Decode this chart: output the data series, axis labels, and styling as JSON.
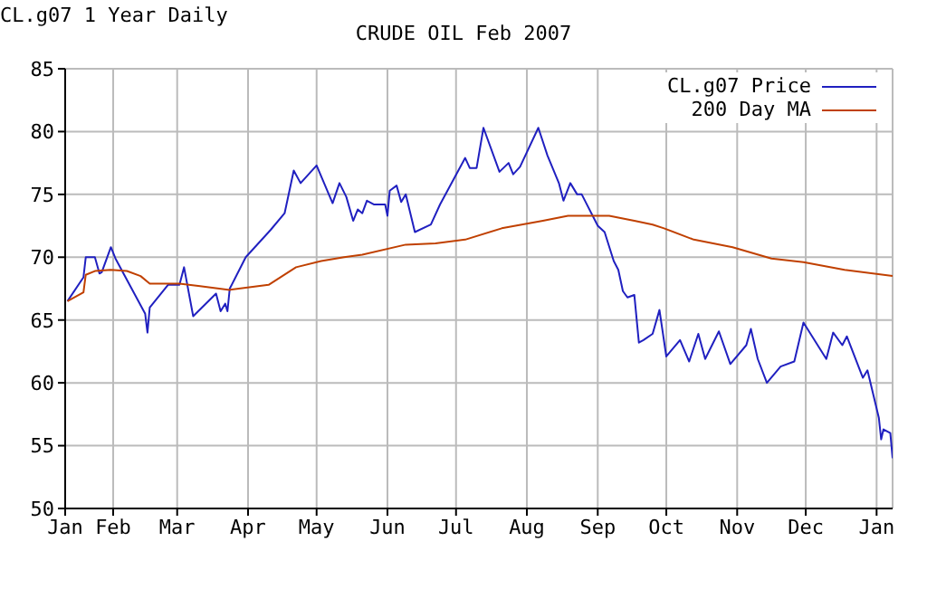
{
  "chart_data": {
    "type": "line",
    "title": "CRUDE OIL Feb 2007",
    "subtitle": "CL.g07 1 Year Daily",
    "xlim": [
      "2006-01-11",
      "2007-01-08"
    ],
    "xticks": [
      {
        "value": "2006-01-11",
        "label": "Jan"
      },
      {
        "value": "2006-02-01",
        "label": "Feb"
      },
      {
        "value": "2006-03-01",
        "label": "Mar"
      },
      {
        "value": "2006-04-01",
        "label": "Apr"
      },
      {
        "value": "2006-05-01",
        "label": "May"
      },
      {
        "value": "2006-06-01",
        "label": "Jun"
      },
      {
        "value": "2006-07-01",
        "label": "Jul"
      },
      {
        "value": "2006-08-01",
        "label": "Aug"
      },
      {
        "value": "2006-09-01",
        "label": "Sep"
      },
      {
        "value": "2006-10-01",
        "label": "Oct"
      },
      {
        "value": "2006-11-01",
        "label": "Nov"
      },
      {
        "value": "2006-12-01",
        "label": "Dec"
      },
      {
        "value": "2007-01-01",
        "label": "Jan"
      }
    ],
    "ylim": [
      50,
      85
    ],
    "yticks": [
      50,
      55,
      60,
      65,
      70,
      75,
      80,
      85
    ],
    "grid": true,
    "legend": "top right",
    "series": [
      {
        "name": "CL.g07 Price",
        "color": "#2020c0",
        "x": [
          "2006-01-12",
          "2006-01-19",
          "2006-01-20",
          "2006-01-24",
          "2006-01-26",
          "2006-01-27",
          "2006-01-31",
          "2006-02-02",
          "2006-02-07",
          "2006-02-15",
          "2006-02-16",
          "2006-02-17",
          "2006-02-25",
          "2006-03-02",
          "2006-03-04",
          "2006-03-08",
          "2006-03-18",
          "2006-03-20",
          "2006-03-22",
          "2006-03-23",
          "2006-03-24",
          "2006-03-31",
          "2006-04-11",
          "2006-04-17",
          "2006-04-21",
          "2006-04-24",
          "2006-05-01",
          "2006-05-08",
          "2006-05-11",
          "2006-05-14",
          "2006-05-17",
          "2006-05-19",
          "2006-05-21",
          "2006-05-23",
          "2006-05-26",
          "2006-05-31",
          "2006-06-01",
          "2006-06-02",
          "2006-06-05",
          "2006-06-07",
          "2006-06-09",
          "2006-06-13",
          "2006-06-20",
          "2006-06-24",
          "2006-07-05",
          "2006-07-07",
          "2006-07-10",
          "2006-07-13",
          "2006-07-20",
          "2006-07-24",
          "2006-07-26",
          "2006-07-29",
          "2006-08-06",
          "2006-08-10",
          "2006-08-15",
          "2006-08-17",
          "2006-08-20",
          "2006-08-23",
          "2006-08-25",
          "2006-09-01",
          "2006-09-04",
          "2006-09-08",
          "2006-09-10",
          "2006-09-12",
          "2006-09-14",
          "2006-09-17",
          "2006-09-19",
          "2006-09-21",
          "2006-09-25",
          "2006-09-28",
          "2006-10-01",
          "2006-10-07",
          "2006-10-11",
          "2006-10-15",
          "2006-10-18",
          "2006-10-24",
          "2006-10-29",
          "2006-11-05",
          "2006-11-07",
          "2006-11-10",
          "2006-11-14",
          "2006-11-20",
          "2006-11-26",
          "2006-11-30",
          "2006-12-10",
          "2006-12-13",
          "2006-12-17",
          "2006-12-19",
          "2006-12-26",
          "2006-12-28",
          "2007-01-02",
          "2007-01-03",
          "2007-01-04",
          "2007-01-07",
          "2007-01-08"
        ],
        "values": [
          66.5,
          68.4,
          70.0,
          70.0,
          68.7,
          68.8,
          70.8,
          69.9,
          68.2,
          65.5,
          64.0,
          66.0,
          67.8,
          67.8,
          69.2,
          65.3,
          67.1,
          65.7,
          66.3,
          65.7,
          67.5,
          70.0,
          72.2,
          73.5,
          76.9,
          75.9,
          77.3,
          74.3,
          75.9,
          74.8,
          72.9,
          73.8,
          73.5,
          74.5,
          74.2,
          74.2,
          73.3,
          75.3,
          75.7,
          74.4,
          75.0,
          72.0,
          72.6,
          74.2,
          77.9,
          77.1,
          77.1,
          80.3,
          76.8,
          77.5,
          76.6,
          77.2,
          80.3,
          78.1,
          75.9,
          74.5,
          75.9,
          75.0,
          75.0,
          72.5,
          72.0,
          69.7,
          69.0,
          67.3,
          66.8,
          67.0,
          63.2,
          63.4,
          63.9,
          65.8,
          62.1,
          63.4,
          61.7,
          63.9,
          61.9,
          64.1,
          61.5,
          63.0,
          64.3,
          61.9,
          60.0,
          61.3,
          61.7,
          64.8,
          61.9,
          64.0,
          63.0,
          63.7,
          60.4,
          61.0,
          57.2,
          55.5,
          56.3,
          56.0,
          54.0
        ]
      },
      {
        "name": "200 Day MA",
        "color": "#c04000",
        "x": [
          "2006-01-12",
          "2006-01-19",
          "2006-01-20",
          "2006-01-24",
          "2006-01-31",
          "2006-02-07",
          "2006-02-13",
          "2006-02-17",
          "2006-03-02",
          "2006-03-11",
          "2006-03-24",
          "2006-04-10",
          "2006-04-22",
          "2006-05-03",
          "2006-05-13",
          "2006-05-21",
          "2006-06-09",
          "2006-06-22",
          "2006-07-05",
          "2006-07-21",
          "2006-08-08",
          "2006-08-19",
          "2006-09-06",
          "2006-09-17",
          "2006-09-25",
          "2006-09-30",
          "2006-10-13",
          "2006-10-30",
          "2006-11-16",
          "2006-11-30",
          "2006-12-18",
          "2007-01-08"
        ],
        "values": [
          66.5,
          67.2,
          68.6,
          68.9,
          69.0,
          68.9,
          68.5,
          67.9,
          67.9,
          67.7,
          67.4,
          67.8,
          69.2,
          69.7,
          70.0,
          70.2,
          71.0,
          71.1,
          71.4,
          72.3,
          72.9,
          73.3,
          73.3,
          72.9,
          72.6,
          72.3,
          71.4,
          70.8,
          69.9,
          69.6,
          69.0,
          68.5
        ]
      }
    ]
  }
}
